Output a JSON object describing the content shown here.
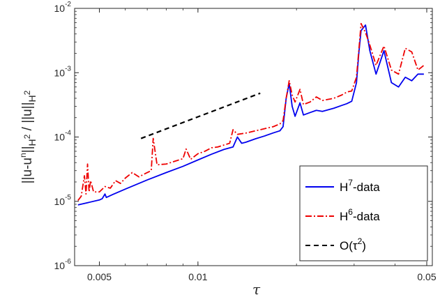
{
  "chart_data": {
    "type": "line",
    "xscale": "log",
    "yscale": "log",
    "xlim": [
      0.0042,
      0.052
    ],
    "ylim": [
      1e-06,
      0.01
    ],
    "xlabel": "τ",
    "ylabel": {
      "parts": [
        {
          "t": "||u-u",
          "s": "n"
        },
        {
          "t": "n",
          "s": "sup"
        },
        {
          "t": "||",
          "s": "n"
        },
        {
          "t": "H",
          "s": "sub"
        },
        {
          "t": "2",
          "s": "subsup"
        },
        {
          "t": " / ||u||",
          "s": "n"
        },
        {
          "t": "H",
          "s": "sub"
        },
        {
          "t": "2",
          "s": "subsup"
        }
      ]
    },
    "xticks": [
      {
        "value": 0.005,
        "label": "0.005"
      },
      {
        "value": 0.01,
        "label": "0.01"
      },
      {
        "value": 0.05,
        "label": "0.05"
      }
    ],
    "yticks": [
      {
        "value": 1e-06,
        "base": "10",
        "exp": "-6"
      },
      {
        "value": 1e-05,
        "base": "10",
        "exp": "-5"
      },
      {
        "value": 0.0001,
        "base": "10",
        "exp": "-4"
      },
      {
        "value": 0.001,
        "base": "10",
        "exp": "-3"
      },
      {
        "value": 0.01,
        "base": "10",
        "exp": "-2"
      }
    ],
    "grid": false,
    "legend_position": "bottom-right",
    "series": [
      {
        "name": "H7-data",
        "legend": {
          "base": "H",
          "sup": "7",
          "rest": "-data"
        },
        "color": "#0000ee",
        "style": "solid",
        "x": [
          0.0043,
          0.005,
          0.0051,
          0.0052,
          0.00525,
          0.0055,
          0.006,
          0.007,
          0.008,
          0.009,
          0.01,
          0.011,
          0.012,
          0.0128,
          0.0132,
          0.0136,
          0.014,
          0.015,
          0.016,
          0.017,
          0.0178,
          0.0182,
          0.0186,
          0.019,
          0.0194,
          0.0198,
          0.0205,
          0.021,
          0.022,
          0.023,
          0.024,
          0.026,
          0.0275,
          0.0285,
          0.0295,
          0.0305,
          0.031,
          0.0315,
          0.0325,
          0.0335,
          0.035,
          0.037,
          0.039,
          0.041,
          0.043,
          0.045,
          0.047,
          0.049
        ],
        "y": [
          8.8e-06,
          1.05e-05,
          1.1e-05,
          1.3e-05,
          1.15e-05,
          1.28e-05,
          1.55e-05,
          2.15e-05,
          2.8e-05,
          3.5e-05,
          4.4e-05,
          5.4e-05,
          6.4e-05,
          7e-05,
          0.0001,
          8e-05,
          8.3e-05,
          9.4e-05,
          0.000104,
          0.000116,
          0.000125,
          0.000145,
          0.0004,
          0.00068,
          0.0003,
          0.00021,
          0.00034,
          0.00022,
          0.00024,
          0.00026,
          0.00025,
          0.00028,
          0.00031,
          0.00033,
          0.00036,
          0.0007,
          0.002,
          0.0045,
          0.0055,
          0.0022,
          0.00095,
          0.0022,
          0.0007,
          0.0006,
          0.00085,
          0.00075,
          0.00095,
          0.00095
        ]
      },
      {
        "name": "H6-data",
        "legend": {
          "base": "H",
          "sup": "6",
          "rest": "-data"
        },
        "color": "#ee0000",
        "style": "dashdot",
        "x": [
          0.0043,
          0.0044,
          0.0045,
          0.00455,
          0.0046,
          0.00465,
          0.0047,
          0.0048,
          0.005,
          0.0052,
          0.0054,
          0.0056,
          0.0058,
          0.006,
          0.0063,
          0.0066,
          0.0069,
          0.0072,
          0.0073,
          0.0075,
          0.008,
          0.0085,
          0.009,
          0.0092,
          0.0095,
          0.01,
          0.0105,
          0.011,
          0.0115,
          0.012,
          0.0125,
          0.0128,
          0.0132,
          0.014,
          0.015,
          0.016,
          0.017,
          0.0178,
          0.0182,
          0.0186,
          0.019,
          0.0194,
          0.0198,
          0.0205,
          0.021,
          0.022,
          0.023,
          0.024,
          0.026,
          0.0275,
          0.0285,
          0.0295,
          0.0305,
          0.031,
          0.0315,
          0.0325,
          0.0335,
          0.035,
          0.037,
          0.039,
          0.041,
          0.043,
          0.045,
          0.047,
          0.049
        ],
        "y": [
          1.03e-05,
          1.2e-05,
          2.5e-05,
          1.3e-05,
          3.8e-05,
          1.4e-05,
          2.1e-05,
          1.4e-05,
          1.4e-05,
          1.7e-05,
          1.6e-05,
          2.1e-05,
          1.9e-05,
          2.3e-05,
          2.8e-05,
          2.4e-05,
          2.7e-05,
          3e-05,
          9.5e-05,
          3.7e-05,
          3.8e-05,
          4.2e-05,
          4.6e-05,
          6.5e-05,
          4.5e-05,
          5.5e-05,
          6e-05,
          6.8e-05,
          7e-05,
          7.5e-05,
          8e-05,
          0.00013,
          0.00011,
          0.000115,
          0.000125,
          0.000135,
          0.000145,
          0.00016,
          0.00018,
          0.0004,
          0.00075,
          0.00045,
          0.00035,
          0.00055,
          0.00032,
          0.00035,
          0.00042,
          0.00037,
          0.0004,
          0.00045,
          0.0005,
          0.00052,
          0.00085,
          0.0022,
          0.0058,
          0.0042,
          0.0027,
          0.0013,
          0.0026,
          0.0011,
          0.00095,
          0.0024,
          0.0021,
          0.0011,
          0.0013
        ]
      },
      {
        "name": "O(τ2)",
        "legend": {
          "base": "O(τ",
          "sup": "2",
          "rest": ")"
        },
        "color": "#000000",
        "style": "dashed",
        "x": [
          0.0067,
          0.0155
        ],
        "y": [
          9.5e-05,
          0.00048
        ]
      }
    ]
  }
}
